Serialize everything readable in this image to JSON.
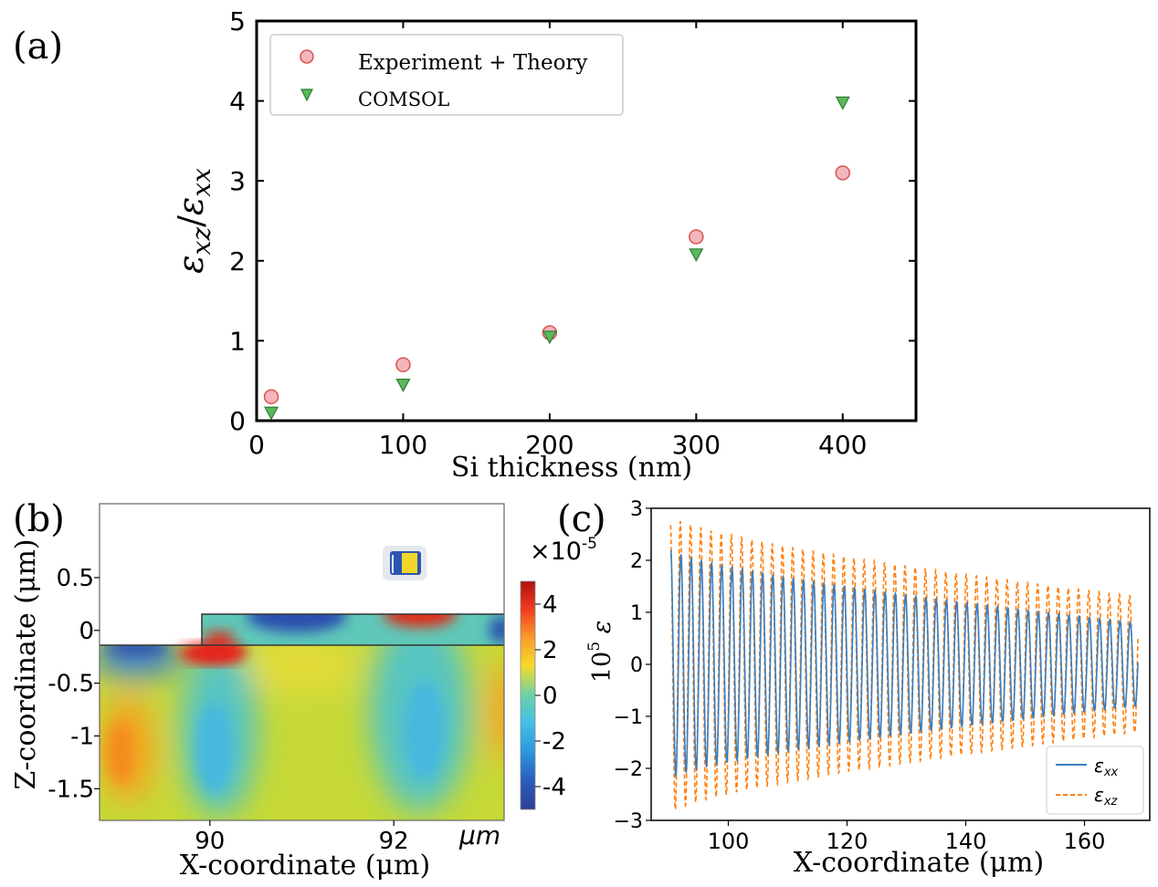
{
  "chart_data": [
    {
      "type": "scatter",
      "panel_label": "(a)",
      "xlabel": "Si thickness (nm)",
      "ylabel_main": "ε",
      "ylabel_sub1": "xz",
      "ylabel_slash": "/",
      "ylabel_sub2": "xx",
      "xlim": [
        0,
        450
      ],
      "ylim": [
        0,
        5
      ],
      "xticks": [
        0,
        100,
        200,
        300,
        400
      ],
      "yticks": [
        0,
        1,
        2,
        3,
        4,
        5
      ],
      "legend_position": "top-left",
      "series": [
        {
          "name": "Experiment + Theory",
          "marker": "circle",
          "color": "#f4b6bd",
          "edge": "#d9534f",
          "x": [
            10,
            100,
            200,
            300,
            400
          ],
          "y": [
            0.3,
            0.7,
            1.1,
            2.3,
            3.1
          ]
        },
        {
          "name": "COMSOL",
          "marker": "triangle-down",
          "color": "#5cb85c",
          "edge": "#2e7d32",
          "x": [
            10,
            100,
            200,
            300,
            400
          ],
          "y": [
            0.1,
            0.45,
            1.05,
            2.08,
            3.98
          ]
        }
      ]
    },
    {
      "type": "heatmap",
      "panel_label": "(b)",
      "xlabel": "X-coordinate (μm)",
      "ylabel": "Z-coordinate (μm)",
      "corner_unit": "μm",
      "xlim": [
        88.8,
        93.2
      ],
      "ylim": [
        -1.8,
        1.2
      ],
      "xticks": [
        90,
        92
      ],
      "yticks": [
        0.5,
        0,
        -0.5,
        -1,
        -1.5
      ],
      "ytick_labels": [
        "0.5",
        "0",
        "-0.5",
        "-1",
        "-1.5"
      ],
      "colorbar_exponent": "×10",
      "colorbar_power": "-5",
      "colorbar_range": [
        -5,
        5
      ],
      "colorbar_ticks": [
        4,
        2,
        0,
        -2,
        -4
      ],
      "colorbar_tick_labels": [
        "4",
        "2",
        "0",
        "-2",
        "-4"
      ]
    },
    {
      "type": "line",
      "panel_label": "(c)",
      "xlabel": "X-coordinate (μm)",
      "ylabel_prefix": "10",
      "ylabel_power": "5",
      "ylabel_symbol": "ε",
      "xlim": [
        87,
        171
      ],
      "ylim": [
        -3,
        3
      ],
      "xticks": [
        100,
        120,
        140,
        160
      ],
      "yticks": [
        3,
        2,
        1,
        0,
        -1,
        -2,
        -3
      ],
      "ytick_labels": [
        "3",
        "2",
        "1",
        "0",
        "−1",
        "−2",
        "−3"
      ],
      "legend_position": "bottom-right",
      "series": [
        {
          "name": "ε",
          "sub": "xx",
          "style": "solid",
          "color": "#3a7ebf",
          "x_start": 90.3,
          "x_end": 169,
          "period": 1.72,
          "amp_start": 2.2,
          "amp_end": 0.8,
          "offset": 0
        },
        {
          "name": "ε",
          "sub": "xz",
          "style": "dashed",
          "color": "#ff7f0e",
          "x_start": 90.3,
          "x_end": 169,
          "period": 1.72,
          "amp_start": 2.85,
          "amp_end": 1.3,
          "offset": 0
        }
      ]
    }
  ]
}
